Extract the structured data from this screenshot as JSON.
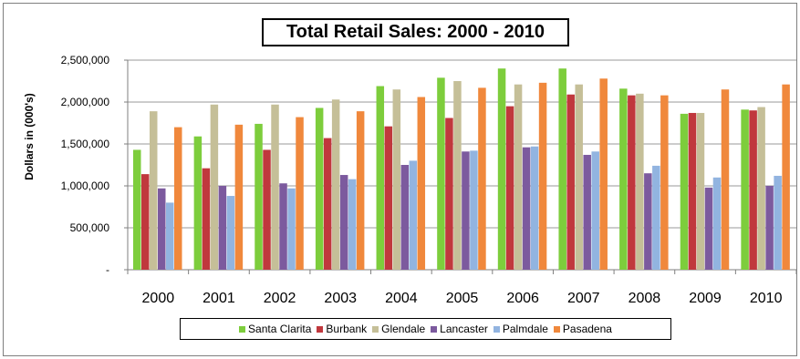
{
  "chart_data": {
    "type": "bar",
    "title": "Total Retail Sales: 2000 - 2010",
    "ylabel": "Dollars in (000's)",
    "xlabel": "",
    "ylim": [
      0,
      2500000
    ],
    "yticks": [
      0,
      500000,
      1000000,
      1500000,
      2000000,
      2500000
    ],
    "ytick_labels": [
      "-",
      "500,000",
      "1,000,000",
      "1,500,000",
      "2,000,000",
      "2,500,000"
    ],
    "grid": true,
    "legend_position": "bottom",
    "categories": [
      "2000",
      "2001",
      "2002",
      "2003",
      "2004",
      "2005",
      "2006",
      "2007",
      "2008",
      "2009",
      "2010"
    ],
    "series": [
      {
        "name": "Santa Clarita",
        "color": "#7dcd3c",
        "values": [
          1430000,
          1590000,
          1740000,
          1930000,
          2190000,
          2290000,
          2400000,
          2400000,
          2160000,
          1860000,
          1910000
        ]
      },
      {
        "name": "Burbank",
        "color": "#c0383d",
        "values": [
          1140000,
          1210000,
          1430000,
          1570000,
          1710000,
          1810000,
          1950000,
          2090000,
          2080000,
          1870000,
          1900000
        ]
      },
      {
        "name": "Glendale",
        "color": "#c5bf98",
        "values": [
          1890000,
          1970000,
          1970000,
          2030000,
          2150000,
          2250000,
          2210000,
          2210000,
          2100000,
          1870000,
          1940000
        ]
      },
      {
        "name": "Lancaster",
        "color": "#7c5a9e",
        "values": [
          970000,
          1000000,
          1030000,
          1130000,
          1250000,
          1410000,
          1460000,
          1370000,
          1150000,
          980000,
          1000000
        ]
      },
      {
        "name": "Palmdale",
        "color": "#92b4e0",
        "values": [
          800000,
          880000,
          970000,
          1080000,
          1300000,
          1420000,
          1470000,
          1410000,
          1240000,
          1100000,
          1120000
        ]
      },
      {
        "name": "Pasadena",
        "color": "#f0883c",
        "values": [
          1700000,
          1730000,
          1820000,
          1890000,
          2060000,
          2170000,
          2230000,
          2280000,
          2080000,
          2150000,
          2210000
        ]
      }
    ]
  }
}
